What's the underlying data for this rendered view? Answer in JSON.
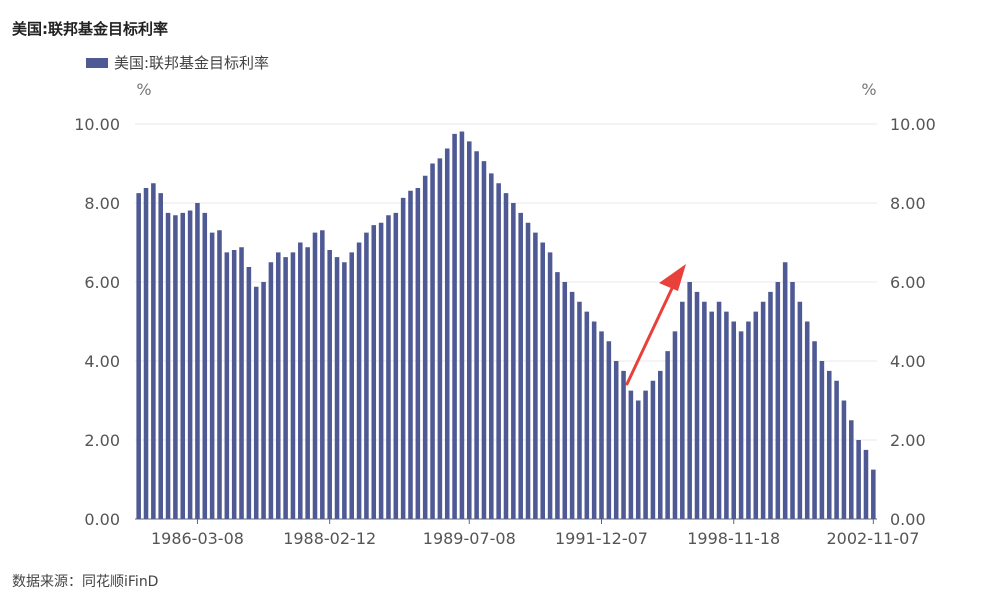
{
  "title": "美国:联邦基金目标利率",
  "source": "数据来源：同花顺iFinD",
  "colors": {
    "bar": "#4f5a94",
    "grid": "#e8e8e8",
    "axis": "#666666",
    "arrow": "#e8403a"
  },
  "chart_data": {
    "type": "bar",
    "title": "美国:联邦基金目标利率",
    "legend": {
      "position": "top-left",
      "entries": [
        "美国:联邦基金目标利率"
      ]
    },
    "y_unit_left": "%",
    "y_unit_right": "%",
    "ylim": [
      0,
      10
    ],
    "yticks": [
      "0.00",
      "2.00",
      "4.00",
      "6.00",
      "8.00",
      "10.00"
    ],
    "xticks": [
      "1986-03-08",
      "1988-02-12",
      "1989-07-08",
      "1991-12-07",
      "1998-11-18",
      "2002-11-07"
    ],
    "grid": true,
    "annotation": "red upward arrow",
    "series": [
      {
        "name": "美国:联邦基金目标利率",
        "values": [
          8.25,
          8.38,
          8.5,
          8.25,
          7.75,
          7.69,
          7.75,
          7.81,
          8.0,
          7.75,
          7.25,
          7.31,
          6.75,
          6.81,
          6.88,
          6.38,
          5.88,
          6.0,
          6.5,
          6.75,
          6.63,
          6.75,
          7.0,
          6.88,
          7.25,
          7.31,
          6.81,
          6.63,
          6.5,
          6.75,
          7.0,
          7.25,
          7.44,
          7.5,
          7.69,
          7.75,
          8.13,
          8.31,
          8.38,
          8.69,
          9.0,
          9.13,
          9.38,
          9.75,
          9.81,
          9.56,
          9.31,
          9.06,
          8.75,
          8.5,
          8.25,
          8.0,
          7.75,
          7.5,
          7.25,
          7.0,
          6.75,
          6.25,
          6.0,
          5.75,
          5.5,
          5.25,
          5.0,
          4.75,
          4.5,
          4.0,
          3.75,
          3.25,
          3.0,
          3.25,
          3.5,
          3.75,
          4.25,
          4.75,
          5.5,
          6.0,
          5.75,
          5.5,
          5.25,
          5.5,
          5.25,
          5.0,
          4.75,
          5.0,
          5.25,
          5.5,
          5.75,
          6.0,
          6.5,
          6.0,
          5.5,
          5.0,
          4.5,
          4.0,
          3.75,
          3.5,
          3.0,
          2.5,
          2.0,
          1.75,
          1.25
        ]
      }
    ]
  }
}
